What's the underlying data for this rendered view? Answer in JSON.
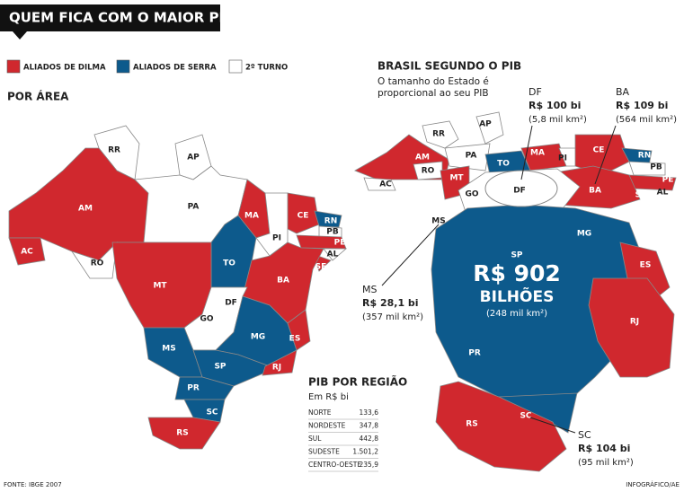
{
  "header": {
    "title": "QUEM FICA COM O MAIOR PIB"
  },
  "legend": [
    {
      "label": "ALIADOS DE DILMA",
      "color": "#d0282e"
    },
    {
      "label": "ALIADOS DE SERRA",
      "color": "#0d5a8c"
    },
    {
      "label": "2º TURNO",
      "color": "#ffffff"
    }
  ],
  "area_map": {
    "title": "POR ÁREA",
    "states": [
      "RR",
      "AP",
      "AM",
      "PA",
      "AC",
      "RO",
      "MA",
      "CE",
      "RN",
      "PB",
      "PE",
      "AL",
      "SE",
      "PI",
      "TO",
      "BA",
      "MT",
      "DF",
      "GO",
      "MS",
      "MG",
      "ES",
      "SP",
      "RJ",
      "PR",
      "SC",
      "RS"
    ]
  },
  "pib_map": {
    "title": "BRASIL SEGUNDO O PIB",
    "subtitle": [
      "O tamanho do Estado é",
      "proporcional ao seu PIB"
    ],
    "states": [
      "RR",
      "AP",
      "AM",
      "PA",
      "AC",
      "RO",
      "MT",
      "GO",
      "DF",
      "MS",
      "TO",
      "MA",
      "PI",
      "CE",
      "RN",
      "PB",
      "PE",
      "AL",
      "SE",
      "BA",
      "MG",
      "ES",
      "SP",
      "RJ",
      "PR",
      "SC",
      "RS"
    ],
    "highlight": {
      "value": "R$ 902",
      "unit": "BILHÕES",
      "area": "(248 mil km²)"
    },
    "callouts": [
      {
        "state": "DF",
        "value": "R$ 100 bi",
        "area": "(5,8 mil km²)"
      },
      {
        "state": "BA",
        "value": "R$ 109 bi",
        "area": "(564 mil km²)"
      },
      {
        "state": "MS",
        "value": "R$ 28,1 bi",
        "area": "(357 mil km²)"
      },
      {
        "state": "SC",
        "value": "R$ 104 bi",
        "area": "(95 mil km²)"
      }
    ]
  },
  "region_table": {
    "title": "PIB POR REGIÃO",
    "subtitle": "Em R$ bi",
    "rows": [
      [
        "NORTE",
        "133,6"
      ],
      [
        "NORDESTE",
        "347,8"
      ],
      [
        "SUL",
        "442,8"
      ],
      [
        "SUDESTE",
        "1.501,2"
      ],
      [
        "CENTRO-OESTE",
        "235,9"
      ]
    ]
  },
  "footer": {
    "source": "FONTE: IBGE 2007",
    "credit": "INFOGRÁFICO/AE"
  }
}
